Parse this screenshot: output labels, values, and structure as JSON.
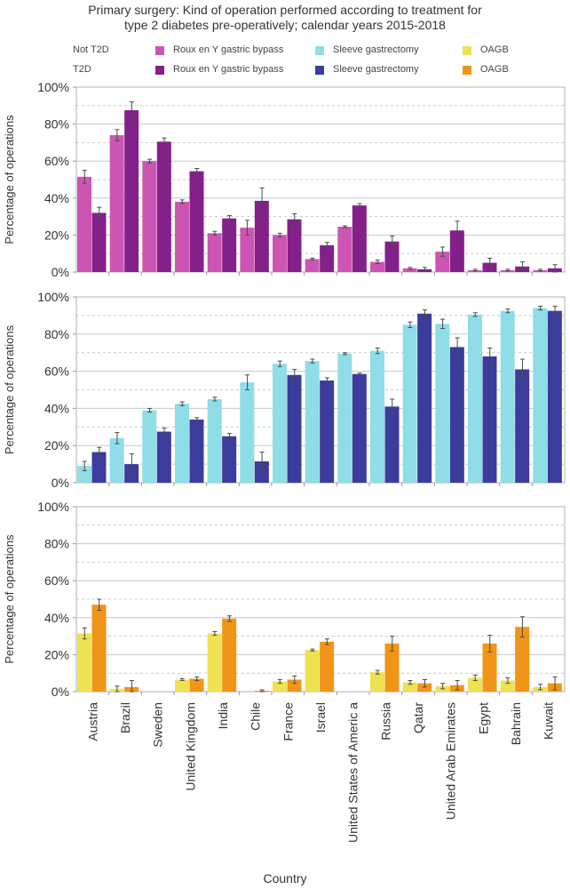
{
  "title_lines": [
    "Primary surgery: Kind of operation  performed according  to treatment for",
    "type  2 diabetes pre-operatively; calendar years 2015-2018"
  ],
  "legend": {
    "rows": [
      {
        "label": "Not T2D",
        "items": [
          {
            "name": "Roux en Y gastric bypass",
            "color": "#cc55b4"
          },
          {
            "name": "Sleeve gastrectomy",
            "color": "#8fdde6"
          },
          {
            "name": "OAGB",
            "color": "#eee152"
          }
        ]
      },
      {
        "label": "T2D",
        "items": [
          {
            "name": "Roux en Y gastric bypass",
            "color": "#84208a"
          },
          {
            "name": "Sleeve gastrectomy",
            "color": "#3b3c9c"
          },
          {
            "name": "OAGB",
            "color": "#f09518"
          }
        ]
      }
    ]
  },
  "chart_data": [
    {
      "type": "bar",
      "panel": "Roux en Y gastric bypass",
      "ylabel": "Percentage of operations",
      "xlabel": "Country",
      "ylim": [
        0,
        100
      ],
      "yticks": [
        "0%",
        "20%",
        "40%",
        "60%",
        "80%",
        "100%"
      ],
      "grid": true,
      "categories": [
        "Austria",
        "Brazil",
        "Sweden",
        "United Kingdom",
        "India",
        "Chile",
        "France",
        "Israel",
        "United States of Americ   a",
        "Russia",
        "Qatar",
        "United Arab Emirates",
        "Egypt",
        "Bahrain",
        "Kuwait"
      ],
      "series": [
        {
          "name": "Not T2D",
          "color": "#cc55b4",
          "values": [
            51.5,
            74,
            60,
            38,
            21,
            24,
            20,
            7,
            24.5,
            5.5,
            2,
            11,
            1,
            1,
            1
          ],
          "errors": [
            3.5,
            3,
            1,
            1,
            1,
            4,
            1,
            0.5,
            0.5,
            1,
            0.5,
            2.5,
            0.5,
            0.5,
            0.5
          ]
        },
        {
          "name": "T2D",
          "color": "#84208a",
          "values": [
            32,
            87.5,
            70.5,
            54.5,
            29,
            38.5,
            28.5,
            14.5,
            36,
            16.5,
            1.5,
            22.5,
            5,
            3,
            2
          ],
          "errors": [
            3,
            4.5,
            2,
            1.5,
            1.5,
            7,
            3,
            1.5,
            1,
            3,
            1,
            5,
            2.5,
            2.5,
            2
          ]
        }
      ]
    },
    {
      "type": "bar",
      "panel": "Sleeve gastrectomy",
      "ylabel": "Percentage of operations",
      "xlabel": "Country",
      "ylim": [
        0,
        100
      ],
      "yticks": [
        "0%",
        "20%",
        "40%",
        "60%",
        "80%",
        "100%"
      ],
      "grid": true,
      "categories": [
        "Austria",
        "Brazil",
        "Sweden",
        "United Kingdom",
        "India",
        "Chile",
        "France",
        "Israel",
        "United States of Americ   a",
        "Russia",
        "Qatar",
        "United Arab Emirates",
        "Egypt",
        "Bahrain",
        "Kuwait"
      ],
      "series": [
        {
          "name": "Not T2D",
          "color": "#8fdde6",
          "values": [
            9,
            24,
            39,
            42.5,
            45,
            54,
            64,
            65.5,
            69.5,
            71,
            85,
            85.5,
            90.5,
            92.5,
            94
          ],
          "errors": [
            2.5,
            3,
            1,
            1,
            1,
            4,
            1.5,
            1,
            0.5,
            1.5,
            1.5,
            2.5,
            1,
            1,
            1
          ]
        },
        {
          "name": "T2D",
          "color": "#3b3c9c",
          "values": [
            16.5,
            10,
            27.5,
            34,
            25,
            11.5,
            58,
            55,
            58.5,
            41,
            91,
            73,
            68,
            61,
            92.5
          ],
          "errors": [
            2.5,
            5.5,
            2,
            1,
            1.5,
            5,
            3,
            1.5,
            0.5,
            4,
            2,
            5,
            4.5,
            5.5,
            2.5
          ]
        }
      ]
    },
    {
      "type": "bar",
      "panel": "OAGB",
      "ylabel": "Percentage of operations",
      "xlabel": "Country",
      "ylim": [
        0,
        100
      ],
      "yticks": [
        "0%",
        "20%",
        "40%",
        "60%",
        "80%",
        "100%"
      ],
      "grid": true,
      "categories": [
        "Austria",
        "Brazil",
        "Sweden",
        "United Kingdom",
        "India",
        "Chile",
        "France",
        "Israel",
        "United States of Americ   a",
        "Russia",
        "Qatar",
        "United Arab Emirates",
        "Egypt",
        "Bahrain",
        "Kuwait"
      ],
      "series": [
        {
          "name": "Not T2D",
          "color": "#eee152",
          "values": [
            31.5,
            1.5,
            0,
            6.5,
            31.5,
            0,
            5.5,
            22.5,
            0,
            10.5,
            5,
            3,
            7.5,
            6,
            2.5
          ],
          "errors": [
            3,
            1.5,
            0,
            0.5,
            1,
            0,
            1,
            0.5,
            0,
            1,
            1,
            1.5,
            1.5,
            1.5,
            1.5
          ]
        },
        {
          "name": "T2D",
          "color": "#f09518",
          "values": [
            47,
            2.5,
            0,
            7,
            39.5,
            0.5,
            6.5,
            27,
            0,
            26,
            4.5,
            3.5,
            26,
            35,
            4.5
          ],
          "errors": [
            3,
            3.5,
            0,
            1,
            1.5,
            0.5,
            2,
            1.5,
            0,
            4,
            2,
            2.5,
            4.5,
            5.5,
            3.5
          ]
        }
      ]
    }
  ]
}
